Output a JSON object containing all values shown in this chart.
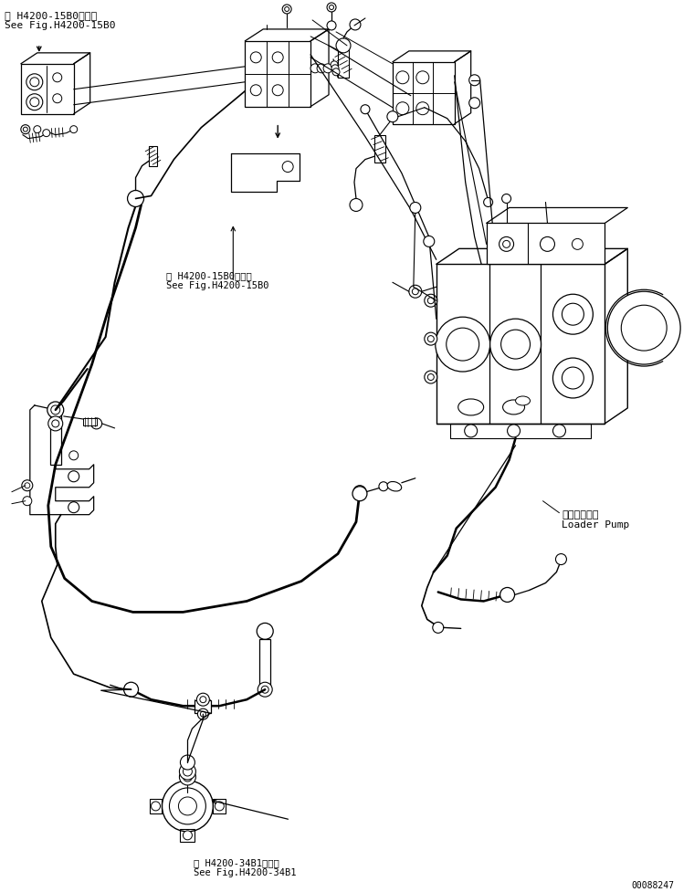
{
  "bg_color": "#ffffff",
  "line_color": "#000000",
  "text_color": "#000000",
  "title_top_left_line1": "第 H4200-15B0図参照",
  "title_top_left_line2": "See Fig.H4200-15B0",
  "label_center_line1": "第 H4200-15B0図参照",
  "label_center_line2": "See Fig.H4200-15B0",
  "label_loader_pump_jp": "ローダポンプ",
  "label_loader_pump_en": "Loader Pump",
  "label_bottom_line1": "第 H4200-34B1図参照",
  "label_bottom_line2": "See Fig.H4200-34B1",
  "serial_number": "00088247",
  "fig_width": 7.6,
  "fig_height": 9.77,
  "dpi": 100
}
